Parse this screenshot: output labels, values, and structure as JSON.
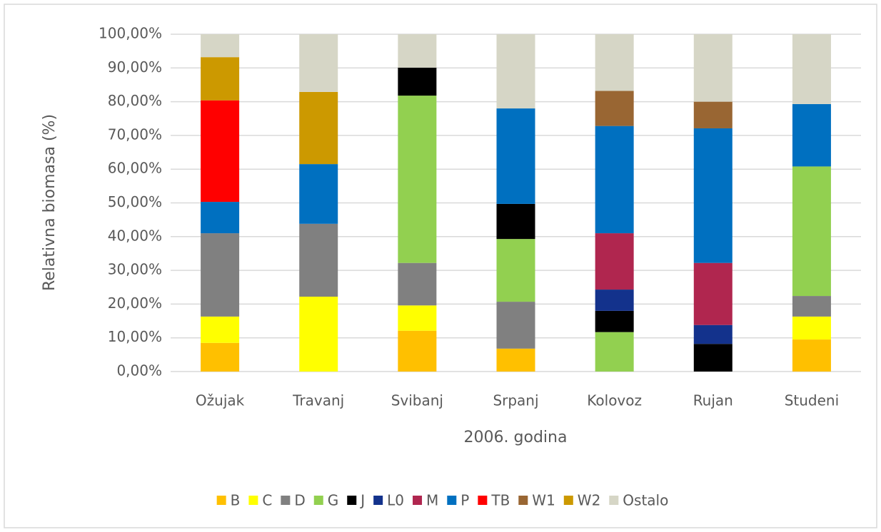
{
  "chart_data": {
    "type": "stacked_bar",
    "y_label": "Relativna biomasa (%)",
    "x_label": "2006. godina",
    "categories": [
      "Ožujak",
      "Travanj",
      "Svibanj",
      "Srpanj",
      "Kolovoz",
      "Rujan",
      "Studeni"
    ],
    "series": [
      {
        "name": "B",
        "color": "#ffc000",
        "values": [
          8.5,
          0,
          12.1,
          6.8,
          0,
          0,
          9.5
        ]
      },
      {
        "name": "C",
        "color": "#ffff00",
        "values": [
          7.8,
          22.2,
          7.5,
          0,
          0,
          0,
          6.8
        ]
      },
      {
        "name": "D",
        "color": "#808080",
        "values": [
          24.7,
          21.6,
          12.6,
          13.9,
          0,
          0,
          6.1
        ]
      },
      {
        "name": "G",
        "color": "#92d050",
        "values": [
          0,
          0,
          49.6,
          18.6,
          11.7,
          0,
          38.4
        ]
      },
      {
        "name": "J",
        "color": "#000000",
        "values": [
          0,
          0,
          8.3,
          10.4,
          6.3,
          8.2,
          0
        ]
      },
      {
        "name": "L0",
        "color": "#13328c",
        "values": [
          0,
          0,
          0,
          0,
          6.3,
          5.6,
          0
        ]
      },
      {
        "name": "M",
        "color": "#b0264f",
        "values": [
          0,
          0,
          0,
          0,
          16.7,
          18.4,
          0
        ]
      },
      {
        "name": "P",
        "color": "#0070c0",
        "values": [
          9.3,
          17.7,
          0,
          28.3,
          31.8,
          39.9,
          18.5
        ]
      },
      {
        "name": "TB",
        "color": "#ff0000",
        "values": [
          30.1,
          0,
          0,
          0,
          0,
          0,
          0
        ]
      },
      {
        "name": "W1",
        "color": "#996633",
        "values": [
          0,
          0,
          0,
          0,
          10.4,
          7.9,
          0
        ]
      },
      {
        "name": "W2",
        "color": "#cc9900",
        "values": [
          12.8,
          21.4,
          0,
          0,
          0,
          0,
          0
        ]
      },
      {
        "name": "Ostalo",
        "color": "#d6d6c6",
        "values": [
          6.8,
          17.1,
          9.9,
          22,
          16.8,
          20,
          20.7
        ]
      }
    ],
    "ylim": [
      0,
      100
    ],
    "yticks": [
      {
        "value": 0,
        "label": "0,00%"
      },
      {
        "value": 10,
        "label": "10,00%"
      },
      {
        "value": 20,
        "label": "20,00%"
      },
      {
        "value": 30,
        "label": "30,00%"
      },
      {
        "value": 40,
        "label": "40,00%"
      },
      {
        "value": 50,
        "label": "50,00%"
      },
      {
        "value": 60,
        "label": "60,00%"
      },
      {
        "value": 70,
        "label": "70,00%"
      },
      {
        "value": 80,
        "label": "80,00%"
      },
      {
        "value": 90,
        "label": "90,00%"
      },
      {
        "value": 100,
        "label": "100,00%"
      }
    ],
    "grid": true,
    "legend": "bottom"
  }
}
